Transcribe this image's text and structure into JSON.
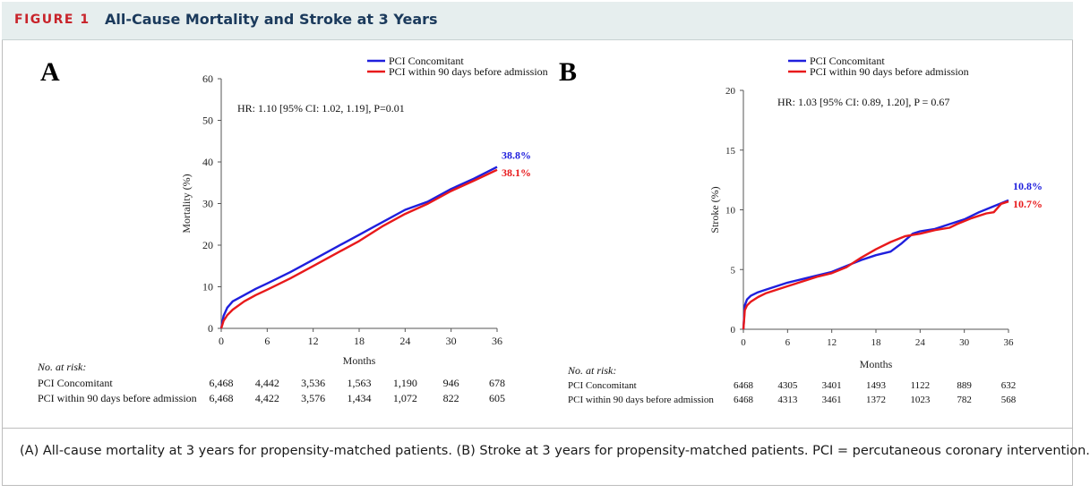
{
  "figure": {
    "number": "FIGURE 1",
    "title": "All-Cause Mortality and Stroke at 3 Years",
    "caption": "(A) All-cause mortality at 3 years for propensity-matched patients. (B) Stroke at 3 years for propensity-matched patients. PCI = percutaneous coronary intervention."
  },
  "colors": {
    "series_1": "#1f1fdd",
    "series_2": "#e8191b",
    "accent": "#c8232a",
    "title": "#1b3a5c"
  },
  "chart_data": [
    {
      "panel": "A",
      "type": "line",
      "title": "",
      "xlabel": "Months",
      "ylabel": "Mortality (%)",
      "xlim": [
        0,
        36
      ],
      "ylim": [
        0,
        60
      ],
      "xticks": [
        0,
        6,
        12,
        18,
        24,
        30,
        36
      ],
      "yticks": [
        0,
        10,
        20,
        30,
        40,
        50,
        60
      ],
      "annotation": "HR: 1.10 [95% CI: 1.02, 1.19], P=0.01",
      "legend": [
        "PCI Concomitant",
        "PCI within 90 days before admission"
      ],
      "series": [
        {
          "name": "PCI Concomitant",
          "color": "#1f1fdd",
          "end_label": "38.8%",
          "x": [
            0,
            0.3,
            0.8,
            1.5,
            3,
            4.5,
            6,
            9,
            12,
            15,
            18,
            21,
            24,
            27,
            30,
            33,
            36
          ],
          "y": [
            0,
            3,
            5,
            6.5,
            8,
            9.5,
            10.8,
            13.5,
            16.5,
            19.5,
            22.5,
            25.5,
            28.5,
            30.5,
            33.5,
            36,
            38.8
          ]
        },
        {
          "name": "PCI within 90 days before admission",
          "color": "#e8191b",
          "end_label": "38.1%",
          "x": [
            0,
            0.3,
            0.8,
            1.5,
            3,
            4.5,
            6,
            9,
            12,
            15,
            18,
            21,
            24,
            27,
            30,
            33,
            36
          ],
          "y": [
            0,
            1.8,
            3.2,
            4.5,
            6.5,
            8,
            9.3,
            12,
            15,
            18,
            21,
            24.5,
            27.5,
            30,
            33,
            35.5,
            38.1
          ]
        }
      ],
      "at_risk": {
        "label": "No. at risk:",
        "rows": [
          {
            "name": "PCI Concomitant",
            "values": [
              "6,468",
              "4,442",
              "3,536",
              "1,563",
              "1,190",
              "946",
              "678"
            ]
          },
          {
            "name": "PCI within 90 days before admission",
            "values": [
              "6,468",
              "4,422",
              "3,576",
              "1,434",
              "1,072",
              "822",
              "605"
            ]
          }
        ]
      }
    },
    {
      "panel": "B",
      "type": "line",
      "title": "",
      "xlabel": "Months",
      "ylabel": "Stroke (%)",
      "xlim": [
        0,
        36
      ],
      "ylim": [
        0,
        20
      ],
      "xticks": [
        0,
        6,
        12,
        18,
        24,
        30,
        36
      ],
      "yticks": [
        0,
        5,
        10,
        15,
        20
      ],
      "annotation": "HR: 1.03 [95% CI: 0.89, 1.20], P = 0.67",
      "legend": [
        "PCI Concomitant",
        "PCI within 90 days before admission"
      ],
      "series": [
        {
          "name": "PCI Concomitant",
          "color": "#1f1fdd",
          "end_label": "10.8%",
          "x": [
            0,
            0.2,
            0.5,
            1,
            2,
            3,
            4.5,
            6,
            8,
            10,
            12,
            14,
            16,
            18,
            20,
            21.5,
            23,
            24,
            26,
            28,
            30,
            32,
            34,
            36
          ],
          "y": [
            0,
            2,
            2.5,
            2.8,
            3.1,
            3.3,
            3.6,
            3.9,
            4.2,
            4.5,
            4.8,
            5.3,
            5.8,
            6.2,
            6.5,
            7.2,
            8,
            8.2,
            8.4,
            8.8,
            9.2,
            9.8,
            10.3,
            10.8
          ]
        },
        {
          "name": "PCI within 90 days before admission",
          "color": "#e8191b",
          "end_label": "10.7%",
          "x": [
            0,
            0.2,
            0.5,
            1,
            2,
            3,
            4.5,
            6,
            8,
            10,
            12,
            14,
            16,
            18,
            20,
            22,
            24,
            26,
            28,
            29,
            31,
            33,
            34,
            35,
            36
          ],
          "y": [
            0,
            1.6,
            2,
            2.3,
            2.7,
            3,
            3.3,
            3.6,
            4,
            4.4,
            4.7,
            5.2,
            6,
            6.7,
            7.3,
            7.8,
            8,
            8.3,
            8.5,
            8.8,
            9.3,
            9.7,
            9.8,
            10.5,
            10.7
          ]
        }
      ],
      "at_risk": {
        "label": "No. at risk:",
        "rows": [
          {
            "name": "PCI Concomitant",
            "values": [
              "6468",
              "4305",
              "3401",
              "1493",
              "1122",
              "889",
              "632"
            ]
          },
          {
            "name": "PCI within 90 days before admission",
            "values": [
              "6468",
              "4313",
              "3461",
              "1372",
              "1023",
              "782",
              "568"
            ]
          }
        ]
      }
    }
  ]
}
